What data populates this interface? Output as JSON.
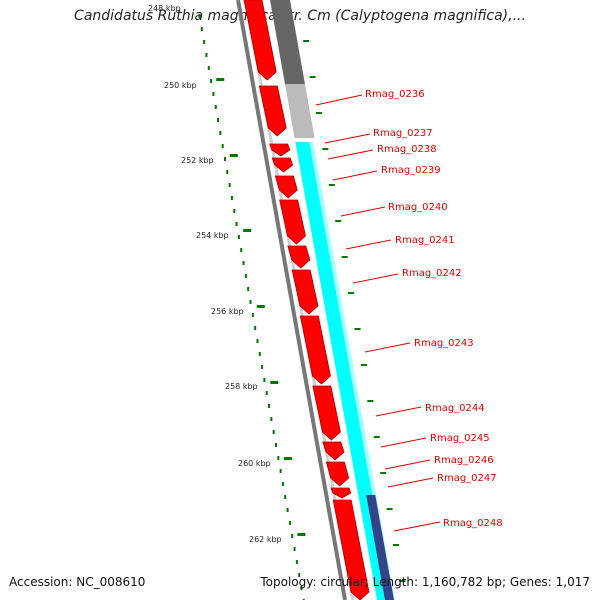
{
  "title": "Candidatus Ruthia magnifica str. Cm (Calyptogena magnifica),...",
  "accession": "Accession: NC_008610",
  "summary": "Topology: circular; Length: 1,160,782 bp; Genes: 1,017",
  "scale_labels": [
    "248 kbp",
    "250 kbp",
    "252 kbp",
    "254 kbp",
    "256 kbp",
    "258 kbp",
    "260 kbp",
    "262 kbp"
  ],
  "gene_labels": [
    "Rmag_0236",
    "Rmag_0237",
    "Rmag_0238",
    "Rmag_0239",
    "Rmag_0240",
    "Rmag_0241",
    "Rmag_0242",
    "Rmag_0243",
    "Rmag_0244",
    "Rmag_0245",
    "Rmag_0246",
    "Rmag_0247",
    "Rmag_0248"
  ],
  "colors": {
    "cds": "#ff0000",
    "cds_outline": "#aa0000",
    "backbone": "#888888",
    "cyan_track": "#00ffff",
    "grey_dark": "#666666",
    "grey_light": "#bbbbbb",
    "navy": "#334488",
    "ticks": "#007700",
    "label": "#dd0000"
  }
}
